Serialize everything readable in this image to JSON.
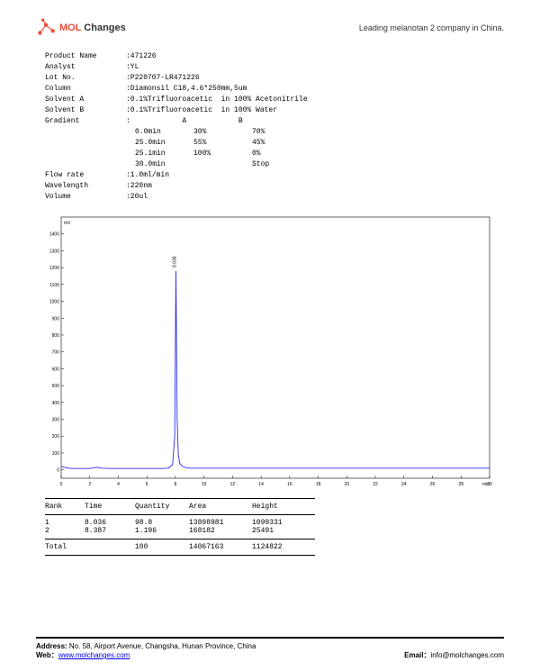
{
  "header": {
    "logo_mol": "MOL",
    "logo_changes": " Changes",
    "tagline": "Leading melanotan 2 company in China."
  },
  "meta": {
    "product_name_label": "Product Name",
    "product_name": ":471226",
    "analyst_label": "Analyst",
    "analyst": ":YL",
    "lot_label": "Lot No.",
    "lot": ":P220707-LR471226",
    "column_label": "Column",
    "column": ":Diamonsil C18,4.6*250mm,5um",
    "solvent_a_label": "Solvent A",
    "solvent_a": ":0.1%Trifluoroacetic  in 100% Acetonitrile",
    "solvent_b_label": "Solvent B",
    "solvent_b": ":0.1%Trifluoroacetic  in 100% Water",
    "gradient_label": "Gradient",
    "gradient_header": ":            A            B",
    "flow_label": "Flow rate",
    "flow": ":1.0ml/min",
    "wavelength_label": "Wavelength",
    "wavelength": ":220nm",
    "volume_label": "Volume",
    "volume": ":20ul"
  },
  "gradient": {
    "rows": [
      {
        "t": "0.0min",
        "a": "30%",
        "b": "70%"
      },
      {
        "t": "25.0min",
        "a": "55%",
        "b": "45%"
      },
      {
        "t": "25.1min",
        "a": "100%",
        "b": "0%"
      },
      {
        "t": "30.0min",
        "a": "",
        "b": "Stop"
      }
    ]
  },
  "chart": {
    "type": "line",
    "y_unit": "mV",
    "y_ticks": [
      0,
      100,
      200,
      300,
      400,
      500,
      600,
      700,
      800,
      900,
      1000,
      1100,
      1200,
      1300,
      1400
    ],
    "x_ticks": [
      0,
      2,
      4,
      6,
      8,
      10,
      12,
      14,
      16,
      18,
      20,
      22,
      24,
      26,
      28,
      30
    ],
    "xlim": [
      0,
      30
    ],
    "ylim": [
      -50,
      1500
    ],
    "peak_label": "8.036",
    "line_color": "#2a2aee",
    "grid_color": "#888888",
    "background_color": "#ffffff",
    "axis_color": "#000000",
    "tick_fontsize": 5,
    "points": [
      [
        0,
        20
      ],
      [
        0.5,
        10
      ],
      [
        1,
        8
      ],
      [
        2,
        8
      ],
      [
        2.5,
        15
      ],
      [
        2.8,
        10
      ],
      [
        3.5,
        8
      ],
      [
        4,
        8
      ],
      [
        5,
        8
      ],
      [
        6,
        8
      ],
      [
        7,
        8
      ],
      [
        7.5,
        10
      ],
      [
        7.8,
        30
      ],
      [
        7.95,
        200
      ],
      [
        8.036,
        1180
      ],
      [
        8.12,
        300
      ],
      [
        8.2,
        90
      ],
      [
        8.3,
        40
      ],
      [
        8.387,
        30
      ],
      [
        8.5,
        20
      ],
      [
        8.8,
        12
      ],
      [
        9,
        10
      ],
      [
        10,
        10
      ],
      [
        12,
        10
      ],
      [
        14,
        10
      ],
      [
        16,
        10
      ],
      [
        18,
        10
      ],
      [
        20,
        10
      ],
      [
        22,
        10
      ],
      [
        24,
        10
      ],
      [
        26,
        10
      ],
      [
        28,
        10
      ],
      [
        30,
        10
      ]
    ]
  },
  "results": {
    "h_rank": "Rank",
    "h_time": "Time",
    "h_qty": "Quantity",
    "h_area": "Area",
    "h_height": "Height",
    "r1": {
      "rank": "1",
      "time": "8.036",
      "qty": "98.8",
      "area": "13898981",
      "height": "1099331"
    },
    "r2": {
      "rank": "2",
      "time": "8.387",
      "qty": "1.196",
      "area": "168182",
      "height": "25491"
    },
    "total": {
      "rank": "Total",
      "time": "",
      "qty": "100",
      "area": "14067163",
      "height": "1124822"
    }
  },
  "footer": {
    "addr_label": "Address: ",
    "addr": "No. 58, Airport Avenue, Changsha, Hunan Province, China",
    "web_label": "Web：",
    "web": "www.molchanges.com",
    "email_label": "Email：",
    "email": "info@molchanges.com"
  }
}
